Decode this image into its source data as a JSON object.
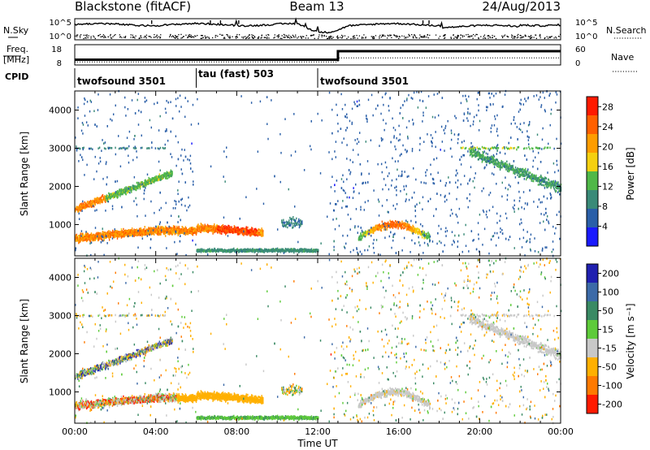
{
  "header": {
    "station": "Blackstone (fitACF)",
    "beam": "Beam 13",
    "date": "24/Aug/2013"
  },
  "panels": {
    "nsky": {
      "label": "N.Sky",
      "right_label": "N.Search",
      "tick_top": "10^5",
      "tick_bottom": "10^0"
    },
    "freq": {
      "label_line1": "Freq.",
      "label_line2": "[MHz]",
      "right_label": "Nave",
      "left_ticks": [
        "18",
        "8"
      ],
      "right_ticks": [
        "60",
        "0"
      ]
    },
    "cpid": {
      "label": "CPID",
      "segments": [
        {
          "name": "twofsound 3501",
          "start_hour": 0
        },
        {
          "name": "tau (fast) 503",
          "start_hour": 6
        },
        {
          "name": "twofsound 3501",
          "start_hour": 12
        }
      ]
    }
  },
  "chart_data": [
    {
      "type": "heatmap",
      "title": "",
      "ylabel": "Slant Range [km]",
      "xlabel": "",
      "xlim_hours": [
        0,
        24
      ],
      "ylim": [
        180,
        4500
      ],
      "y_ticks": [
        1000,
        2000,
        3000,
        4000
      ],
      "colorbar": {
        "label": "Power [dB]",
        "ticks": [
          4,
          8,
          12,
          16,
          20,
          24,
          28
        ],
        "range": [
          0,
          30
        ],
        "colors": [
          "#1a1aff",
          "#2a5fa8",
          "#3a8a78",
          "#4fb848",
          "#f5d010",
          "#ff9d00",
          "#ff6000",
          "#ff1a00"
        ]
      },
      "echo_regions": [
        {
          "name": "evening band",
          "t_start": 0.0,
          "t_end": 9.3,
          "range_km": 760,
          "width_km": 160,
          "level_db": 22
        },
        {
          "name": "rising band",
          "t_start": 0.0,
          "t_end": 4.8,
          "range_start_km": 1400,
          "range_end_km": 2350,
          "level_db": 18
        },
        {
          "name": "ground scatter",
          "t_start": 6.0,
          "t_end": 12.0,
          "range_km": 320,
          "level_db": 12
        },
        {
          "name": "afternoon patch",
          "t_start": 14.0,
          "t_end": 17.5,
          "range_km": 850,
          "level_db": 20
        },
        {
          "name": "evening descent",
          "t_start": 19.5,
          "t_end": 24.0,
          "range_start_km": 2900,
          "range_end_km": 1950,
          "level_db": 12
        }
      ]
    },
    {
      "type": "heatmap",
      "title": "",
      "ylabel": "Slant Range [km]",
      "xlabel": "Time UT",
      "xlim_hours": [
        0,
        24
      ],
      "ylim": [
        180,
        4500
      ],
      "y_ticks": [
        1000,
        2000,
        3000,
        4000
      ],
      "x_tick_labels": [
        "00:00",
        "04:00",
        "08:00",
        "12:00",
        "16:00",
        "20:00",
        "00:00"
      ],
      "colorbar": {
        "label": "Velocity [m s⁻¹]",
        "ticks": [
          200,
          100,
          50,
          15,
          -15,
          -50,
          -100,
          -200
        ],
        "colors": [
          "#2020b0",
          "#3c6aa8",
          "#3a8a64",
          "#5ecb3a",
          "#c8c8c8",
          "#ffb000",
          "#ff7a00",
          "#ff1a00"
        ]
      },
      "echo_regions": [
        {
          "name": "evening band",
          "t_start": 0.0,
          "t_end": 9.3,
          "range_km": 760,
          "velocity_ms": -50
        },
        {
          "name": "rising band",
          "t_start": 0.0,
          "t_end": 4.8,
          "range_start_km": 1400,
          "range_end_km": 2350,
          "velocity_ms": 0
        },
        {
          "name": "ground scatter",
          "t_start": 6.0,
          "t_end": 12.0,
          "range_km": 320,
          "velocity_ms": 30
        },
        {
          "name": "afternoon patch",
          "t_start": 14.0,
          "t_end": 17.5,
          "range_km": 850,
          "velocity_ms": 0
        },
        {
          "name": "evening descent",
          "t_start": 19.5,
          "t_end": 24.0,
          "range_start_km": 2900,
          "range_end_km": 1950,
          "velocity_ms": 0
        }
      ]
    }
  ]
}
